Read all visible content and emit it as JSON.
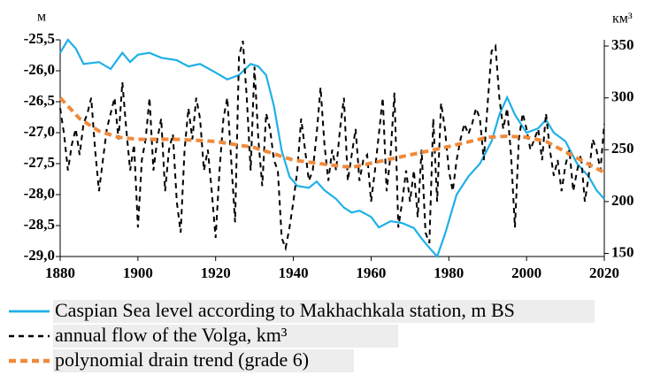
{
  "chart_data": {
    "type": "line",
    "y_label": "м",
    "y2_label": "км³",
    "xlim": [
      1880,
      2020
    ],
    "xticks": [
      1880,
      1900,
      1920,
      1940,
      1960,
      1980,
      2000,
      2020
    ],
    "ylim": [
      -29.0,
      -25.5
    ],
    "yticks": [
      {
        "value": -25.5,
        "label": "-25,5"
      },
      {
        "value": -26.0,
        "label": "-26,0"
      },
      {
        "value": -26.5,
        "label": "-26,5"
      },
      {
        "value": -27.0,
        "label": "-27,0"
      },
      {
        "value": -27.5,
        "label": "-27,5"
      },
      {
        "value": -28.0,
        "label": "-28,0"
      },
      {
        "value": -28.5,
        "label": "-28,5"
      },
      {
        "value": -29.0,
        "label": "-29,0"
      }
    ],
    "y2lim": [
      147,
      356
    ],
    "y2ticks": [
      150,
      200,
      250,
      300,
      350
    ],
    "grid": false,
    "series": [
      {
        "name": "Caspian Sea level according to Makhachkala station, m BS",
        "color": "#1fb0e8",
        "style": "solid",
        "x": [
          1880,
          1882,
          1884,
          1886,
          1890,
          1893,
          1896,
          1898,
          1900,
          1903,
          1906,
          1910,
          1913,
          1916,
          1920,
          1923,
          1926,
          1929,
          1931,
          1933,
          1935,
          1937,
          1939,
          1941,
          1944,
          1946,
          1948,
          1951,
          1953,
          1955,
          1957,
          1960,
          1962,
          1965,
          1968,
          1971,
          1973,
          1975,
          1977,
          1979,
          1982,
          1985,
          1988,
          1991,
          1993,
          1995,
          1997,
          2000,
          2003,
          2005,
          2007,
          2010,
          2013,
          2016,
          2018,
          2020
        ],
        "values": [
          -25.71,
          -25.5,
          -25.64,
          -25.89,
          -25.86,
          -25.97,
          -25.71,
          -25.86,
          -25.74,
          -25.71,
          -25.79,
          -25.83,
          -25.93,
          -25.89,
          -26.03,
          -26.14,
          -26.07,
          -25.89,
          -25.93,
          -26.07,
          -26.57,
          -27.29,
          -27.71,
          -27.86,
          -27.89,
          -27.79,
          -27.93,
          -28.07,
          -28.21,
          -28.29,
          -28.26,
          -28.36,
          -28.53,
          -28.43,
          -28.46,
          -28.54,
          -28.71,
          -28.86,
          -29.0,
          -28.64,
          -28.0,
          -27.71,
          -27.5,
          -27.14,
          -26.71,
          -26.43,
          -26.71,
          -27.0,
          -26.93,
          -26.79,
          -27.0,
          -27.14,
          -27.5,
          -27.71,
          -27.93,
          -28.07
        ]
      },
      {
        "name": "annual flow of the Volga, km³",
        "color": "#000000",
        "style": "dash",
        "axis": "y2",
        "x": [
          1880,
          1881,
          1882,
          1883,
          1884,
          1885,
          1886,
          1887,
          1888,
          1889,
          1890,
          1891,
          1892,
          1893,
          1894,
          1895,
          1896,
          1897,
          1898,
          1899,
          1900,
          1901,
          1902,
          1903,
          1904,
          1905,
          1906,
          1907,
          1908,
          1909,
          1910,
          1911,
          1912,
          1913,
          1914,
          1915,
          1916,
          1917,
          1918,
          1919,
          1920,
          1921,
          1922,
          1923,
          1924,
          1925,
          1926,
          1927,
          1928,
          1929,
          1930,
          1931,
          1932,
          1933,
          1934,
          1935,
          1936,
          1937,
          1938,
          1939,
          1940,
          1941,
          1942,
          1943,
          1944,
          1945,
          1946,
          1947,
          1948,
          1949,
          1950,
          1951,
          1952,
          1953,
          1954,
          1955,
          1956,
          1957,
          1958,
          1959,
          1960,
          1961,
          1962,
          1963,
          1964,
          1965,
          1966,
          1967,
          1968,
          1969,
          1970,
          1971,
          1972,
          1973,
          1974,
          1975,
          1976,
          1977,
          1978,
          1979,
          1980,
          1981,
          1982,
          1983,
          1984,
          1985,
          1986,
          1987,
          1988,
          1989,
          1990,
          1991,
          1992,
          1993,
          1994,
          1995,
          1996,
          1997,
          1998,
          1999,
          2000,
          2001,
          2002,
          2003,
          2004,
          2005,
          2006,
          2007,
          2008,
          2009,
          2010,
          2011,
          2012,
          2013,
          2014,
          2015,
          2016,
          2017,
          2018,
          2019,
          2020
        ],
        "values": [
          290,
          265,
          230,
          255,
          270,
          245,
          275,
          285,
          300,
          250,
          210,
          240,
          270,
          285,
          300,
          260,
          315,
          270,
          230,
          255,
          175,
          240,
          260,
          300,
          230,
          260,
          280,
          210,
          250,
          265,
          200,
          170,
          250,
          290,
          260,
          300,
          280,
          230,
          250,
          210,
          165,
          230,
          280,
          300,
          240,
          180,
          340,
          355,
          300,
          230,
          330,
          260,
          215,
          285,
          270,
          240,
          230,
          165,
          155,
          175,
          200,
          230,
          280,
          250,
          220,
          230,
          265,
          310,
          255,
          220,
          250,
          230,
          270,
          300,
          220,
          245,
          270,
          220,
          240,
          245,
          200,
          230,
          265,
          300,
          210,
          245,
          305,
          175,
          200,
          230,
          200,
          230,
          185,
          250,
          170,
          160,
          280,
          200,
          295,
          270,
          230,
          210,
          240,
          260,
          275,
          265,
          275,
          290,
          280,
          240,
          295,
          345,
          350,
          300,
          270,
          290,
          245,
          175,
          260,
          285,
          270,
          250,
          260,
          270,
          240,
          285,
          250,
          225,
          240,
          210,
          235,
          250,
          210,
          230,
          245,
          200,
          225,
          260,
          250,
          230,
          275
        ]
      },
      {
        "name": "polynomial drain trend (grade 6)",
        "color": "#f08a3c",
        "style": "thickdash",
        "axis": "y2",
        "x": [
          1880,
          1885,
          1890,
          1895,
          1900,
          1910,
          1920,
          1930,
          1940,
          1950,
          1955,
          1960,
          1970,
          1980,
          1990,
          1995,
          2000,
          2005,
          2010,
          2015,
          2020
        ],
        "values": [
          300,
          280,
          268,
          262,
          260,
          260,
          258,
          252,
          240,
          235,
          233,
          237,
          245,
          253,
          262,
          263,
          262,
          258,
          248,
          238,
          228
        ]
      }
    ]
  }
}
